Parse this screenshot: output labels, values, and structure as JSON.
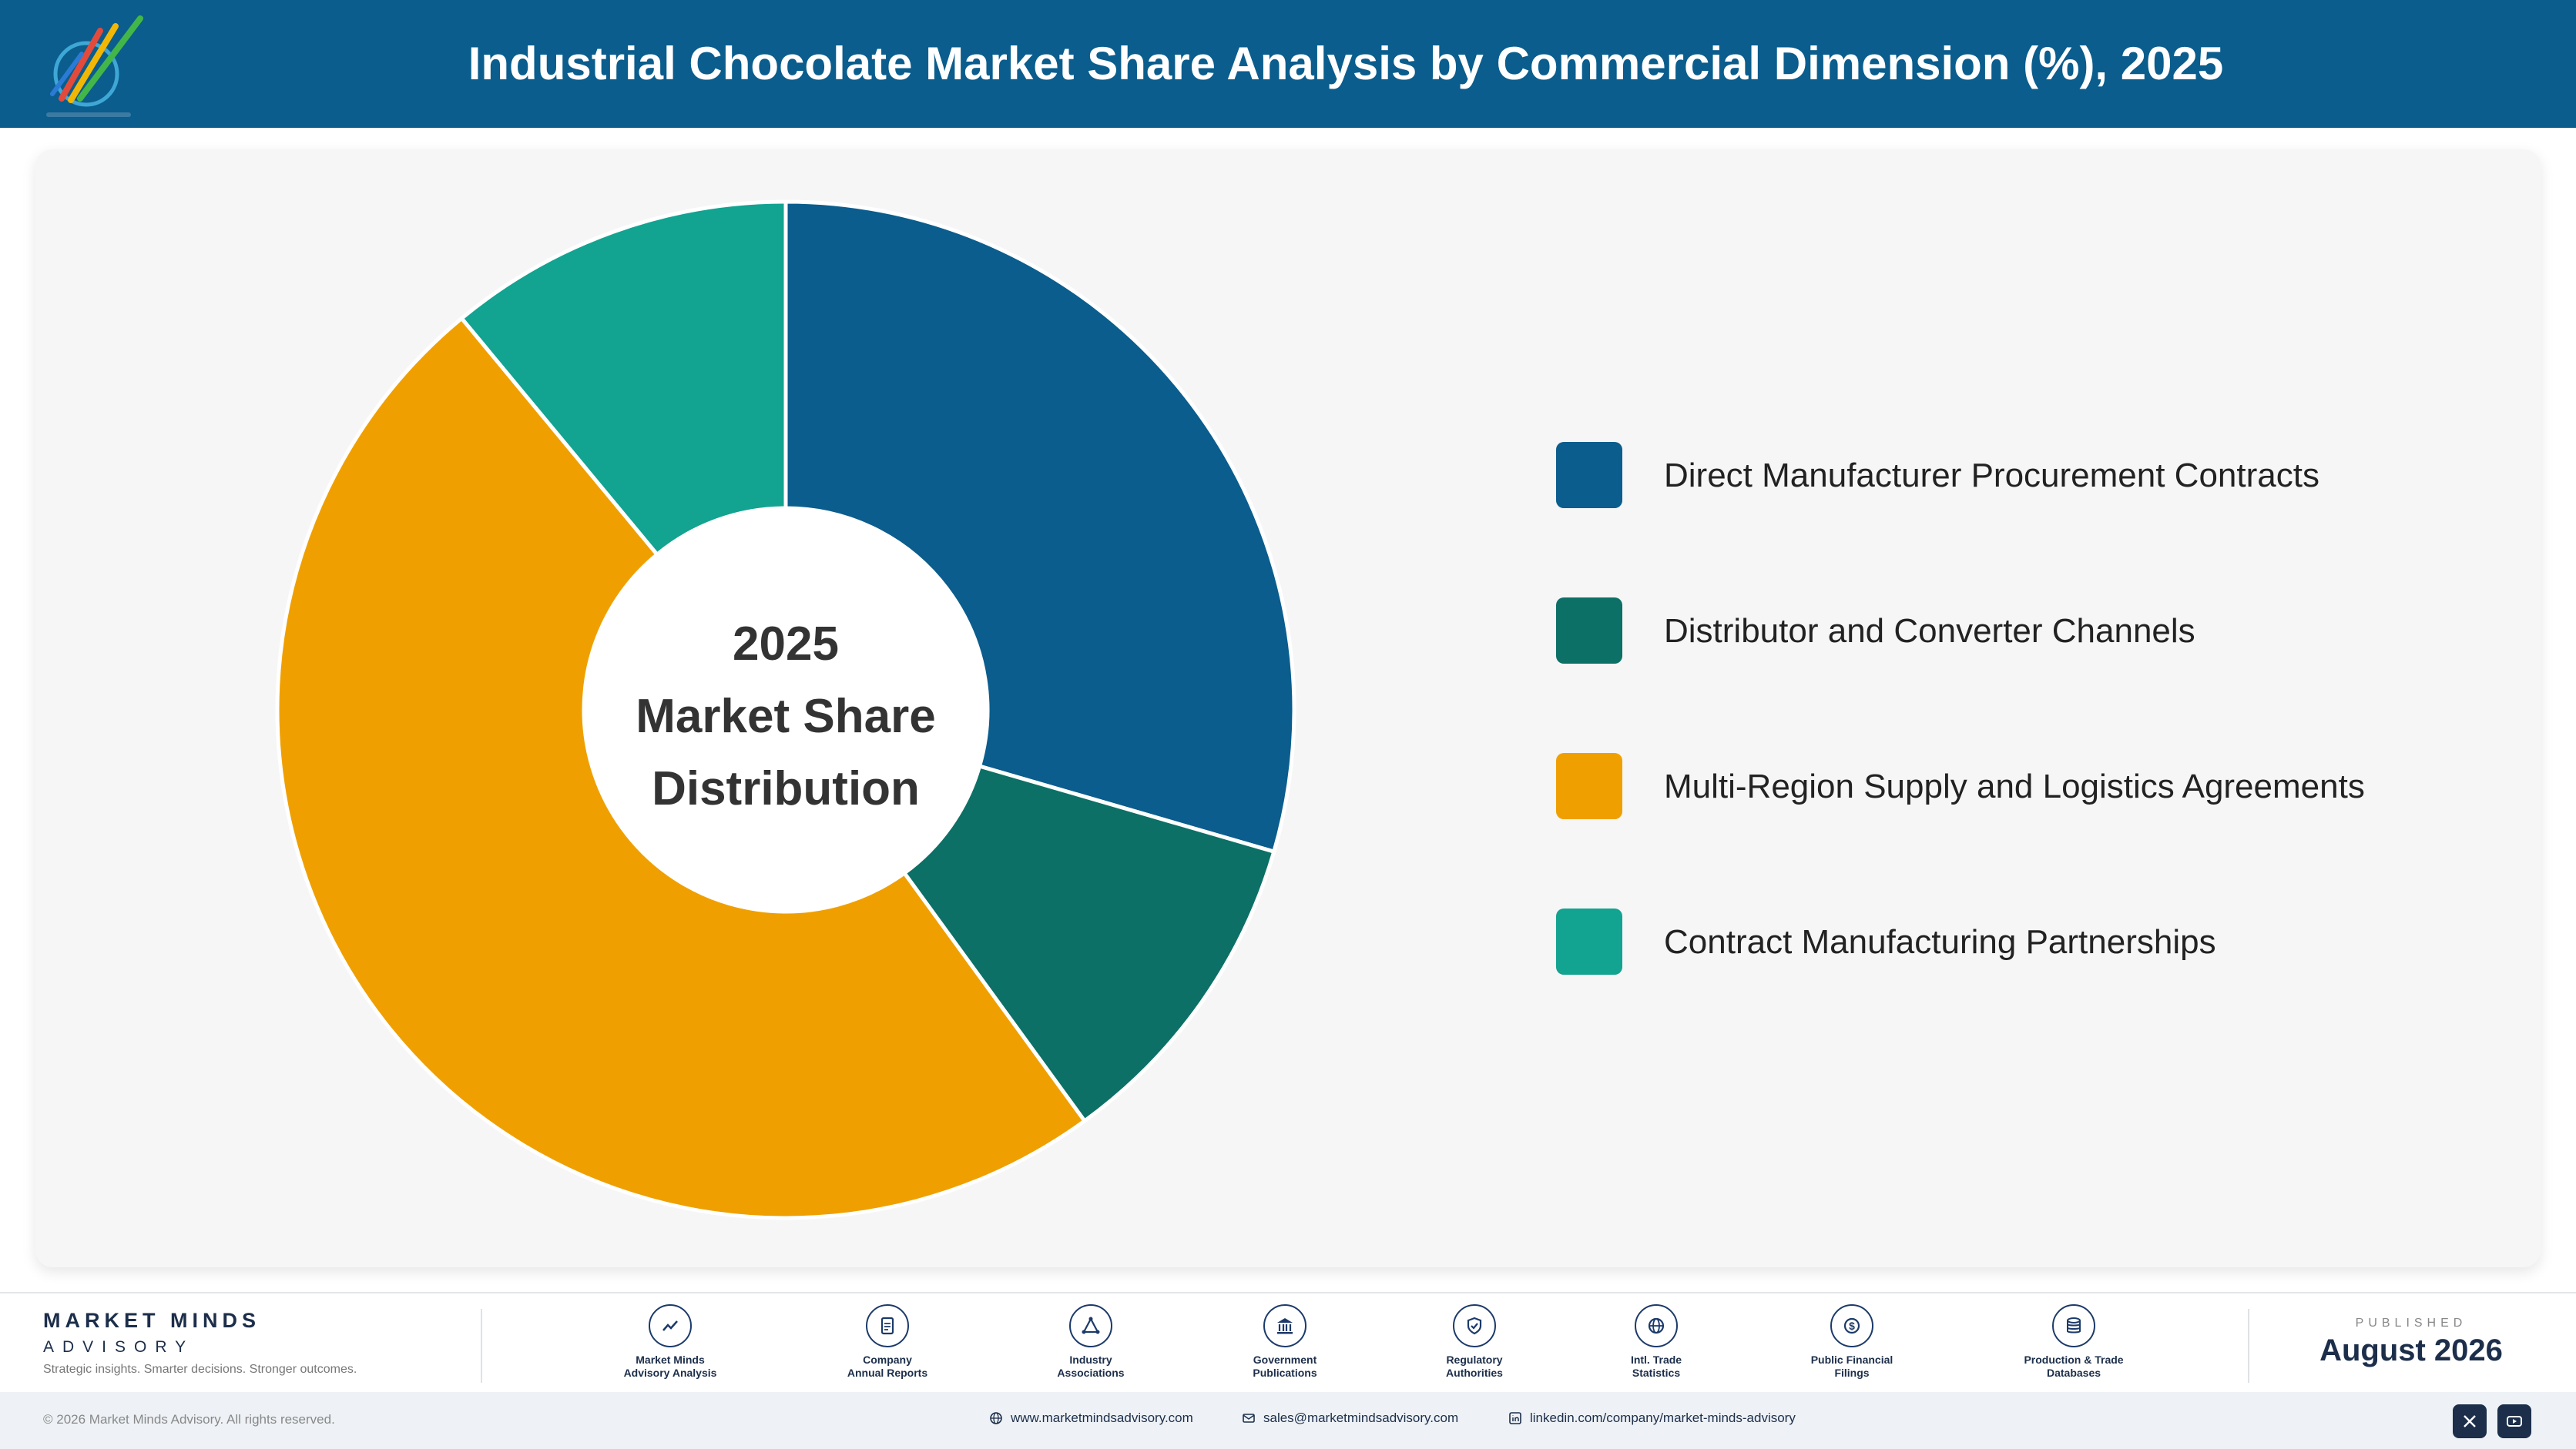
{
  "header": {
    "title": "Industrial Chocolate Market Share Analysis by Commercial Dimension (%), 2025"
  },
  "chart_data": {
    "type": "pie",
    "style": "donut",
    "center_label": [
      "2025",
      "Market Share",
      "Distribution"
    ],
    "categories": [
      "Direct Manufacturer Procurement Contracts",
      "Distributor and Converter Channels",
      "Multi-Region Supply and Logistics Agreements",
      "Contract Manufacturing Partnerships"
    ],
    "values": [
      29.5,
      10.5,
      49.0,
      11.0
    ],
    "colors": [
      "#0a5d8d",
      "#0c7066",
      "#efa000",
      "#12a391"
    ],
    "legend_position": "right"
  },
  "footer": {
    "brand_name": "MARKET MINDS",
    "brand_sub": "ADVISORY",
    "brand_tag": "Strategic insights. Smarter decisions. Stronger outcomes.",
    "sources": [
      {
        "label": "Market Minds\nAdvisory Analysis",
        "icon": "trend-icon"
      },
      {
        "label": "Company\nAnnual Reports",
        "icon": "document-icon"
      },
      {
        "label": "Industry\nAssociations",
        "icon": "network-icon"
      },
      {
        "label": "Government\nPublications",
        "icon": "government-icon"
      },
      {
        "label": "Regulatory\nAuthorities",
        "icon": "shield-icon"
      },
      {
        "label": "Intl. Trade\nStatistics",
        "icon": "globe-icon"
      },
      {
        "label": "Public Financial\nFilings",
        "icon": "dollar-icon"
      },
      {
        "label": "Production & Trade\nDatabases",
        "icon": "database-icon"
      }
    ],
    "published_label": "PUBLISHED",
    "published_date": "August 2026",
    "copyright": "© 2026 Market Minds Advisory. All rights reserved.",
    "website": "www.marketmindsadvisory.com",
    "email": "sales@marketmindsadvisory.com",
    "linkedin": "linkedin.com/company/market-minds-advisory"
  }
}
